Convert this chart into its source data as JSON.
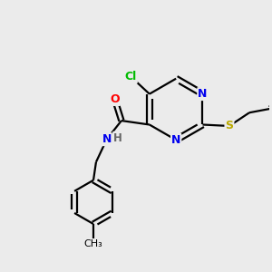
{
  "bg_color": "#ebebeb",
  "bond_color": "#000000",
  "atom_colors": {
    "N": "#0000ee",
    "O": "#ff0000",
    "Cl": "#00bb00",
    "S": "#bbaa00",
    "H": "#666666",
    "C": "#000000"
  }
}
